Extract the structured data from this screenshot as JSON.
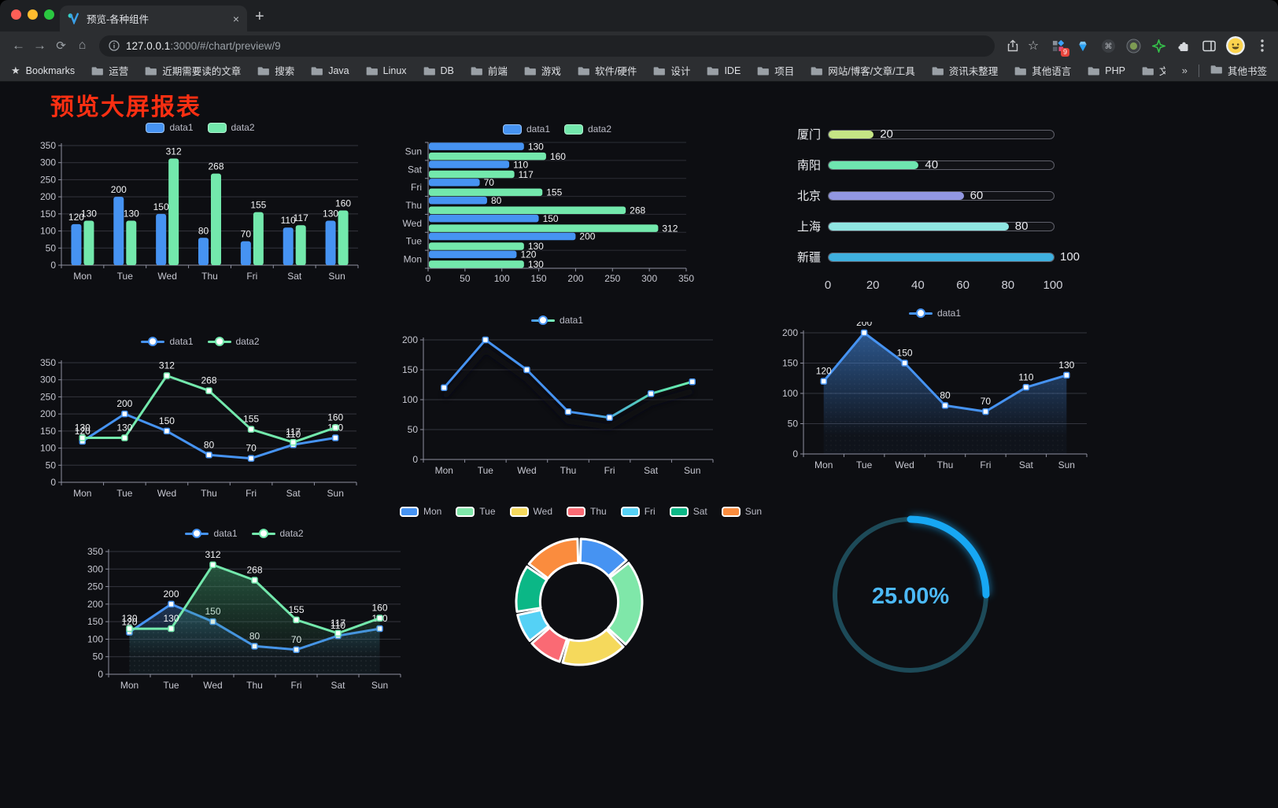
{
  "browser": {
    "tab": {
      "title": "预览-各种组件"
    },
    "url": {
      "host": "127.0.0.1",
      "rest": ":3000/#/chart/preview/9"
    },
    "extensions_badge": "9",
    "bookmarks_bar": {
      "bookmarks_label": "Bookmarks",
      "folders": [
        "运营",
        "近期需要读的文章",
        "搜索",
        "Java",
        "Linux",
        "DB",
        "前端",
        "游戏",
        "软件/硬件",
        "设计",
        "IDE",
        "项目",
        "网站/博客/文章/工具",
        "资讯未整理",
        "其他语言",
        "PHP",
        "文件服务器"
      ],
      "overflow": "»",
      "other_bookmarks": "其他书签"
    }
  },
  "page": {
    "title": "预览大屏报表",
    "title_color": "#fb2f12"
  },
  "chart_data": [
    {
      "type": "bar",
      "categories": [
        "Mon",
        "Tue",
        "Wed",
        "Thu",
        "Fri",
        "Sat",
        "Sun"
      ],
      "series": [
        {
          "name": "data1",
          "color": "#4693f2",
          "values": [
            120,
            200,
            150,
            80,
            70,
            110,
            130
          ]
        },
        {
          "name": "data2",
          "color": "#73e8ac",
          "values": [
            130,
            130,
            312,
            268,
            155,
            117,
            160
          ]
        }
      ],
      "ylim": [
        0,
        350
      ],
      "yticks": [
        0,
        50,
        100,
        150,
        200,
        250,
        300,
        350
      ],
      "legend_position": "top",
      "value_labels": true
    },
    {
      "type": "hbar",
      "categories": [
        "Mon",
        "Tue",
        "Wed",
        "Thu",
        "Fri",
        "Sat",
        "Sun"
      ],
      "series": [
        {
          "name": "data1",
          "color": "#4693f2",
          "values": [
            120,
            200,
            150,
            80,
            70,
            110,
            130
          ]
        },
        {
          "name": "data2",
          "color": "#73e8ac",
          "values": [
            130,
            130,
            312,
            268,
            155,
            117,
            160
          ]
        }
      ],
      "xlim": [
        0,
        350
      ],
      "xticks": [
        0,
        50,
        100,
        150,
        200,
        250,
        300,
        350
      ],
      "legend_position": "top",
      "value_labels": true
    },
    {
      "type": "progress",
      "items": [
        {
          "label": "厦门",
          "value": 20,
          "color": "#c5e585"
        },
        {
          "label": "南阳",
          "value": 40,
          "color": "#6ee5b0"
        },
        {
          "label": "北京",
          "value": 60,
          "color": "#9297e2"
        },
        {
          "label": "上海",
          "value": 80,
          "color": "#8fe6e2"
        },
        {
          "label": "新疆",
          "value": 100,
          "color": "#3fb0df"
        }
      ],
      "max": 100,
      "axis_ticks": [
        0,
        20,
        40,
        60,
        80,
        100
      ]
    },
    {
      "type": "line",
      "categories": [
        "Mon",
        "Tue",
        "Wed",
        "Thu",
        "Fri",
        "Sat",
        "Sun"
      ],
      "series": [
        {
          "name": "data1",
          "color": "#4693f2",
          "values": [
            120,
            200,
            150,
            80,
            70,
            110,
            130
          ]
        },
        {
          "name": "data2",
          "color": "#73e8ac",
          "values": [
            130,
            130,
            312,
            268,
            155,
            117,
            160
          ]
        }
      ],
      "ylim": [
        0,
        350
      ],
      "yticks": [
        0,
        50,
        100,
        150,
        200,
        250,
        300,
        350
      ],
      "legend_position": "top",
      "value_labels": true
    },
    {
      "type": "line",
      "variant": "gradient",
      "categories": [
        "Mon",
        "Tue",
        "Wed",
        "Thu",
        "Fri",
        "Sat",
        "Sun"
      ],
      "series": [
        {
          "name": "data1",
          "color": "#4693f2",
          "color_end": "#7cffb2",
          "values": [
            120,
            200,
            150,
            80,
            70,
            110,
            130
          ]
        }
      ],
      "ylim": [
        0,
        200
      ],
      "yticks": [
        0,
        50,
        100,
        150,
        200
      ],
      "legend_position": "top",
      "value_labels": false
    },
    {
      "type": "area",
      "categories": [
        "Mon",
        "Tue",
        "Wed",
        "Thu",
        "Fri",
        "Sat",
        "Sun"
      ],
      "series": [
        {
          "name": "data1",
          "color": "#4693f2",
          "values": [
            120,
            200,
            150,
            80,
            70,
            110,
            130
          ]
        }
      ],
      "ylim": [
        0,
        200
      ],
      "yticks": [
        0,
        50,
        100,
        150,
        200
      ],
      "legend_position": "top",
      "value_labels": true
    },
    {
      "type": "area",
      "categories": [
        "Mon",
        "Tue",
        "Wed",
        "Thu",
        "Fri",
        "Sat",
        "Sun"
      ],
      "series": [
        {
          "name": "data1",
          "color": "#4693f2",
          "values": [
            120,
            200,
            150,
            80,
            70,
            110,
            130
          ]
        },
        {
          "name": "data2",
          "color": "#73e8ac",
          "area_color": "#3f9e6b",
          "values": [
            130,
            130,
            312,
            268,
            155,
            117,
            160
          ]
        }
      ],
      "ylim": [
        0,
        350
      ],
      "yticks": [
        0,
        50,
        100,
        150,
        200,
        250,
        300,
        350
      ],
      "legend_position": "top",
      "value_labels": true
    },
    {
      "type": "pie",
      "categories": [
        "Mon",
        "Tue",
        "Wed",
        "Thu",
        "Fri",
        "Sat",
        "Sun"
      ],
      "values": [
        120,
        200,
        150,
        80,
        70,
        110,
        130
      ],
      "colors": [
        "#4693f2",
        "#7fe7a9",
        "#f5d95c",
        "#fa6a74",
        "#55d1f5",
        "#0bb786",
        "#fa8c3e"
      ],
      "inner_radius_ratio": 0.62,
      "legend_position": "top"
    },
    {
      "type": "gauge",
      "label": "25.00%",
      "value_percent": 25,
      "bar_color": "#17a7f3",
      "track_color": "#1d4a58",
      "text_color": "#4cb9f7"
    }
  ]
}
